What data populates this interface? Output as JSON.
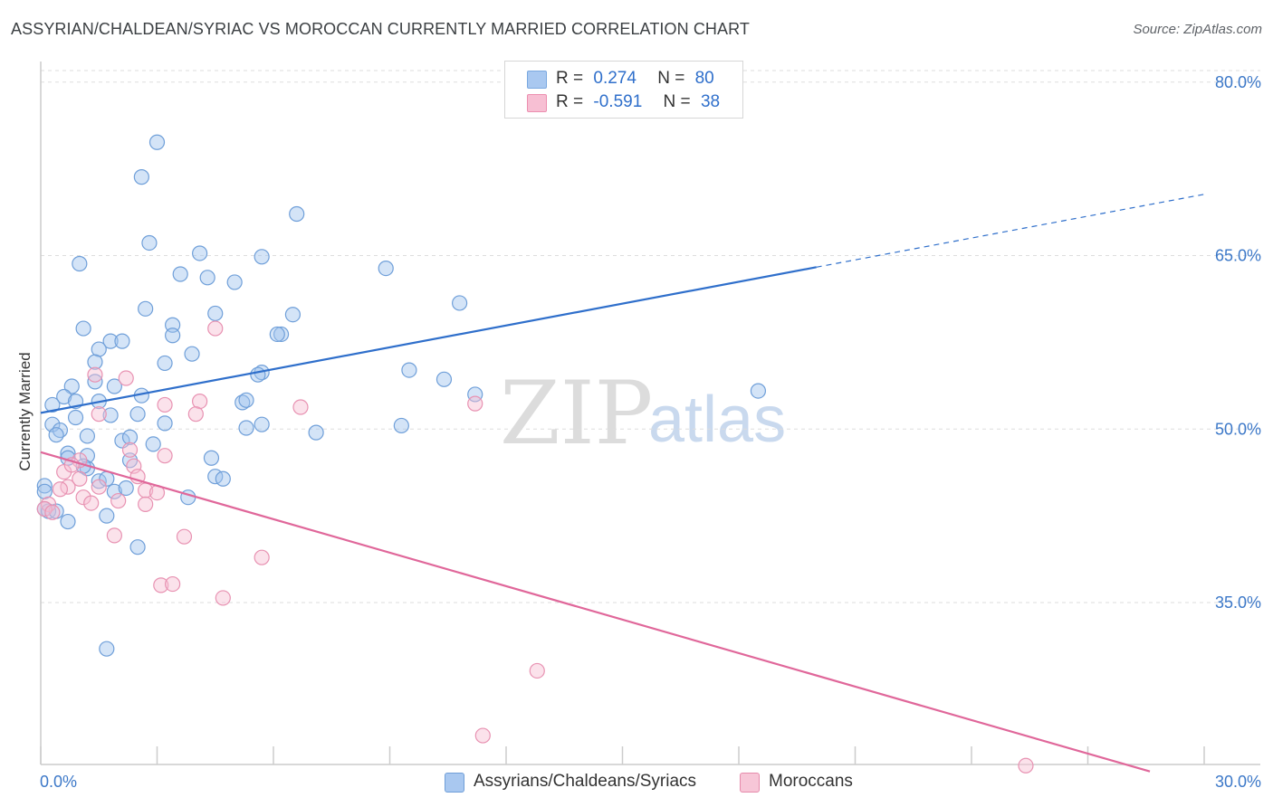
{
  "title": "ASSYRIAN/CHALDEAN/SYRIAC VS MOROCCAN CURRENTLY MARRIED CORRELATION CHART",
  "source": "Source: ZipAtlas.com",
  "watermark": {
    "zip": "ZIP",
    "atlas": "atlas"
  },
  "legend_top": [
    {
      "r_label": "R =",
      "r_value": "0.274",
      "n_label": "N =",
      "n_value": "80",
      "color": "#a9c8f0",
      "border": "#7aa8e0"
    },
    {
      "r_label": "R =",
      "r_value": "-0.591",
      "n_label": "N =",
      "n_value": "38",
      "color": "#f7bfd3",
      "border": "#ec8fb0"
    }
  ],
  "legend_bottom": [
    {
      "label": "Assyrians/Chaldeans/Syriacs",
      "color": "#a9c8f0",
      "border": "#6f9ed8"
    },
    {
      "label": "Moroccans",
      "color": "#f7c6d7",
      "border": "#e68aab"
    }
  ],
  "colors": {
    "blue_fill": "rgba(160,196,238,0.45)",
    "blue_stroke": "#6f9fd9",
    "blue_line": "#2f6fcb",
    "pink_fill": "rgba(247,190,210,0.45)",
    "pink_stroke": "#e892b2",
    "pink_line": "#e0679a",
    "grid": "#dddddd",
    "axis": "#cccccc"
  },
  "chart_data": {
    "type": "scatter",
    "title": "ASSYRIAN/CHALDEAN/SYRIAC VS MOROCCAN CURRENTLY MARRIED CORRELATION CHART",
    "xlabel": "",
    "ylabel": "Currently Married",
    "xlim": [
      0,
      30
    ],
    "ylim": [
      21,
      81
    ],
    "x_tick_labels": [
      "0.0%",
      "30.0%"
    ],
    "y_tick_labels": [
      "80.0%",
      "65.0%",
      "50.0%",
      "35.0%"
    ],
    "y_ticks": [
      80,
      65,
      50,
      35
    ],
    "grid": true,
    "legend_position": "top-center",
    "series": [
      {
        "name": "Assyrians/Chaldeans/Syriacs",
        "R": 0.274,
        "N": 80,
        "trend": {
          "x0": 0.0,
          "y0": 51.4,
          "x1": 20.0,
          "y1": 64.0,
          "dash_to_x": 30.0,
          "dash_to_y": 70.3
        },
        "points": [
          [
            3.0,
            74.8
          ],
          [
            2.6,
            71.8
          ],
          [
            6.6,
            68.6
          ],
          [
            2.8,
            66.1
          ],
          [
            1.0,
            64.3
          ],
          [
            4.1,
            65.2
          ],
          [
            5.7,
            64.9
          ],
          [
            8.9,
            63.9
          ],
          [
            3.6,
            63.4
          ],
          [
            4.3,
            63.1
          ],
          [
            5.0,
            62.7
          ],
          [
            10.8,
            60.9
          ],
          [
            2.7,
            60.4
          ],
          [
            4.5,
            60.0
          ],
          [
            6.5,
            59.9
          ],
          [
            1.1,
            58.7
          ],
          [
            3.4,
            59.0
          ],
          [
            3.4,
            58.1
          ],
          [
            6.2,
            58.2
          ],
          [
            6.1,
            58.2
          ],
          [
            1.8,
            57.6
          ],
          [
            2.1,
            57.6
          ],
          [
            1.5,
            56.9
          ],
          [
            3.9,
            56.5
          ],
          [
            1.4,
            55.8
          ],
          [
            3.2,
            55.7
          ],
          [
            5.7,
            54.9
          ],
          [
            5.6,
            54.7
          ],
          [
            9.5,
            55.1
          ],
          [
            10.4,
            54.3
          ],
          [
            0.8,
            53.7
          ],
          [
            1.4,
            54.1
          ],
          [
            1.9,
            53.7
          ],
          [
            11.2,
            53.0
          ],
          [
            18.5,
            53.3
          ],
          [
            0.6,
            52.8
          ],
          [
            0.3,
            52.1
          ],
          [
            0.9,
            52.4
          ],
          [
            1.5,
            52.4
          ],
          [
            2.6,
            52.9
          ],
          [
            5.2,
            52.3
          ],
          [
            5.3,
            52.5
          ],
          [
            1.8,
            51.2
          ],
          [
            2.5,
            51.3
          ],
          [
            0.9,
            51.0
          ],
          [
            0.3,
            50.4
          ],
          [
            0.5,
            49.9
          ],
          [
            0.4,
            49.5
          ],
          [
            2.1,
            49.0
          ],
          [
            3.2,
            50.5
          ],
          [
            5.7,
            50.4
          ],
          [
            5.3,
            50.1
          ],
          [
            7.1,
            49.7
          ],
          [
            9.3,
            50.3
          ],
          [
            1.2,
            49.4
          ],
          [
            2.3,
            49.3
          ],
          [
            2.9,
            48.7
          ],
          [
            0.7,
            47.9
          ],
          [
            0.7,
            47.5
          ],
          [
            1.2,
            47.7
          ],
          [
            2.3,
            47.3
          ],
          [
            4.4,
            47.5
          ],
          [
            1.2,
            46.6
          ],
          [
            4.5,
            45.9
          ],
          [
            4.7,
            45.7
          ],
          [
            1.5,
            45.5
          ],
          [
            1.7,
            45.7
          ],
          [
            1.9,
            44.6
          ],
          [
            3.8,
            44.1
          ],
          [
            0.1,
            45.1
          ],
          [
            0.1,
            43.1
          ],
          [
            0.2,
            42.9
          ],
          [
            0.7,
            42.0
          ],
          [
            1.7,
            42.5
          ],
          [
            2.5,
            39.8
          ],
          [
            1.7,
            31.0
          ],
          [
            0.1,
            44.6
          ],
          [
            1.1,
            46.8
          ],
          [
            2.2,
            44.9
          ],
          [
            0.4,
            42.9
          ]
        ]
      },
      {
        "name": "Moroccans",
        "R": -0.591,
        "N": 38,
        "trend": {
          "x0": 0.0,
          "y0": 48.0,
          "x1": 28.6,
          "y1": 20.4
        },
        "points": [
          [
            4.5,
            58.7
          ],
          [
            2.2,
            54.4
          ],
          [
            1.4,
            54.7
          ],
          [
            3.2,
            52.1
          ],
          [
            4.1,
            52.4
          ],
          [
            6.7,
            51.9
          ],
          [
            11.2,
            52.2
          ],
          [
            1.5,
            51.3
          ],
          [
            4.0,
            51.3
          ],
          [
            2.3,
            48.2
          ],
          [
            3.2,
            47.7
          ],
          [
            1.0,
            47.3
          ],
          [
            2.4,
            46.8
          ],
          [
            0.6,
            46.3
          ],
          [
            1.0,
            45.7
          ],
          [
            2.5,
            45.9
          ],
          [
            0.7,
            45.0
          ],
          [
            1.5,
            45.0
          ],
          [
            2.7,
            44.7
          ],
          [
            3.0,
            44.5
          ],
          [
            1.1,
            44.1
          ],
          [
            0.5,
            44.8
          ],
          [
            1.3,
            43.6
          ],
          [
            2.0,
            43.8
          ],
          [
            2.7,
            43.5
          ],
          [
            0.2,
            43.5
          ],
          [
            0.1,
            43.1
          ],
          [
            0.3,
            42.8
          ],
          [
            1.9,
            40.8
          ],
          [
            3.7,
            40.7
          ],
          [
            5.7,
            38.9
          ],
          [
            3.1,
            36.5
          ],
          [
            3.4,
            36.6
          ],
          [
            4.7,
            35.4
          ],
          [
            12.8,
            29.1
          ],
          [
            11.4,
            23.5
          ],
          [
            25.4,
            20.9
          ],
          [
            0.8,
            46.9
          ]
        ]
      }
    ]
  }
}
